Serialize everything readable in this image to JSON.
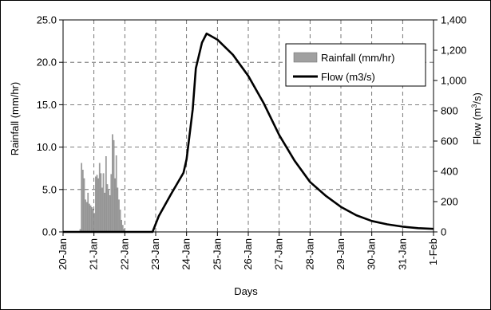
{
  "chart_data": {
    "type": "bar+line",
    "title": "",
    "xlabel": "Days",
    "ylabel_left": "Rainfall (mm/hr)",
    "ylabel_right_prefix": "Flow (m",
    "ylabel_right_sup": "3",
    "ylabel_right_suffix": "/s)",
    "left_axis": {
      "min": 0,
      "max": 25,
      "ticks": [
        0,
        5,
        10,
        15,
        20,
        25
      ],
      "tick_labels": [
        "0.0",
        "5.0",
        "10.0",
        "15.0",
        "20.0",
        "25.0"
      ]
    },
    "right_axis": {
      "min": 0,
      "max": 1400,
      "ticks": [
        0,
        200,
        400,
        600,
        800,
        1000,
        1200,
        1400
      ],
      "tick_labels": [
        "0",
        "200",
        "400",
        "600",
        "800",
        "1,000",
        "1,200",
        "1,400"
      ]
    },
    "x_axis": {
      "start": "20-Jan",
      "end": "1-Feb",
      "tick_labels": [
        "20-Jan",
        "21-Jan",
        "22-Jan",
        "23-Jan",
        "24-Jan",
        "25-Jan",
        "26-Jan",
        "27-Jan",
        "28-Jan",
        "29-Jan",
        "30-Jan",
        "31-Jan",
        "1-Feb"
      ]
    },
    "grid": true,
    "legend": {
      "placement": "top-right",
      "entries": [
        {
          "label": "Rainfall (mm/hr)",
          "kind": "bar"
        },
        {
          "label": "Flow (m3/s)",
          "kind": "line"
        }
      ]
    },
    "series": [
      {
        "name": "Rainfall (mm/hr)",
        "type": "bar",
        "axis": "left",
        "color": "#a0a0a0",
        "x_start_day": 20.54,
        "x_step_days": 0.0417,
        "values": [
          0.3,
          8.1,
          7.3,
          6.3,
          3.8,
          3.5,
          4.6,
          3.3,
          3.1,
          2.9,
          2.7,
          2.2,
          6.5,
          6.7,
          6.3,
          8.1,
          6.9,
          5.2,
          6.9,
          4.6,
          8.9,
          5.6,
          4.9,
          4.3,
          6.8,
          11.5,
          10.8,
          6.3,
          9.0,
          5.2,
          3.8,
          2.6,
          1.4,
          0.8,
          0.3
        ]
      },
      {
        "name": "Flow (m3/s)",
        "type": "line",
        "axis": "right",
        "color": "#000000",
        "points": [
          [
            20.0,
            0
          ],
          [
            22.9,
            0
          ],
          [
            23.1,
            105
          ],
          [
            23.5,
            250
          ],
          [
            23.9,
            390
          ],
          [
            24.0,
            480
          ],
          [
            24.2,
            810
          ],
          [
            24.3,
            1080
          ],
          [
            24.5,
            1250
          ],
          [
            24.65,
            1310
          ],
          [
            25.0,
            1270
          ],
          [
            25.5,
            1170
          ],
          [
            26.0,
            1030
          ],
          [
            26.5,
            850
          ],
          [
            27.0,
            640
          ],
          [
            27.5,
            470
          ],
          [
            28.0,
            330
          ],
          [
            28.5,
            240
          ],
          [
            29.0,
            165
          ],
          [
            29.5,
            110
          ],
          [
            30.0,
            72
          ],
          [
            30.5,
            50
          ],
          [
            31.0,
            35
          ],
          [
            31.5,
            25
          ],
          [
            32.0,
            20
          ]
        ]
      }
    ]
  }
}
